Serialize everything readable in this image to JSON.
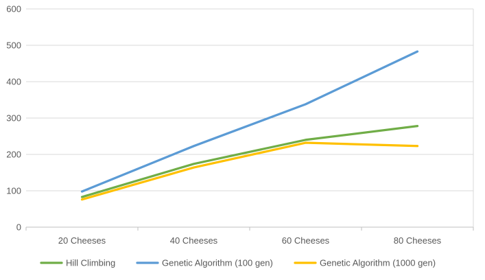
{
  "chart_data": {
    "type": "line",
    "categories": [
      "20 Cheeses",
      "40 Cheeses",
      "60 Cheeses",
      "80 Cheeses"
    ],
    "series": [
      {
        "name": "Hill Climbing",
        "color": "#70AD47",
        "values": [
          83,
          174,
          240,
          278
        ]
      },
      {
        "name": "Genetic Algorithm (100 gen)",
        "color": "#5B9BD5",
        "values": [
          98,
          223,
          338,
          483
        ]
      },
      {
        "name": "Genetic Algorithm (1000 gen)",
        "color": "#FFC000",
        "values": [
          76,
          164,
          232,
          223
        ]
      }
    ],
    "yticks": [
      "0",
      "100",
      "200",
      "300",
      "400",
      "500",
      "600"
    ],
    "ylim": [
      0,
      600
    ],
    "grid": true,
    "legend_position": "bottom"
  }
}
